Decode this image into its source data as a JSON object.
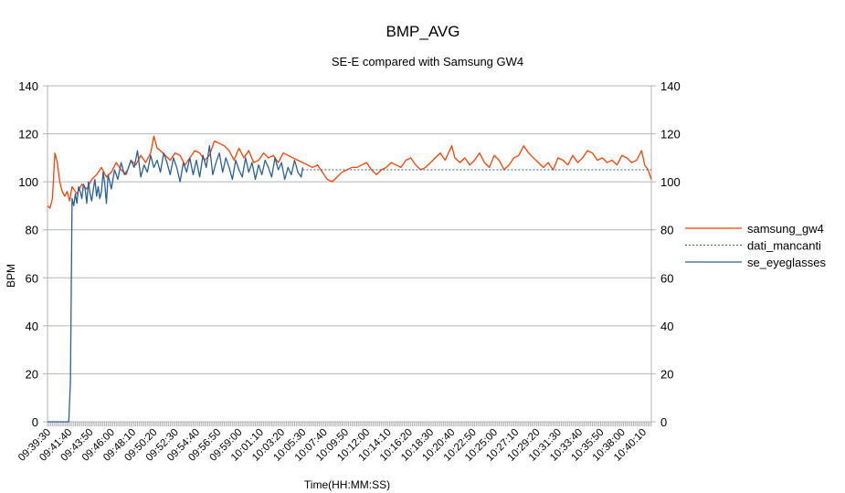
{
  "chart_data": {
    "type": "line",
    "title": "BMP_AVG",
    "subtitle": "SE-E compared with Samsung GW4",
    "xlabel": "Time(HH:MM:SS)",
    "ylabel": "BPM",
    "ylim": [
      0,
      140
    ],
    "y_ticks": [
      0,
      20,
      40,
      60,
      80,
      100,
      120,
      140
    ],
    "secondary_y_ticks": [
      0,
      20,
      40,
      60,
      80,
      100,
      120,
      140
    ],
    "grid": true,
    "legend_position": "right",
    "x_tick_labels": [
      "09:39:30",
      "09:41:40",
      "09:43:50",
      "09:46:00",
      "09:48:10",
      "09:50:20",
      "09:52:30",
      "09:54:40",
      "09:56:50",
      "09:59:00",
      "10:01:10",
      "10:03:20",
      "10:05:30",
      "10:07:40",
      "10:09:50",
      "10:12:00",
      "10:14:10",
      "10:16:20",
      "10:18:30",
      "10:20:40",
      "10:22:50",
      "10:25:00",
      "10:27:10",
      "10:29:20",
      "10:31:30",
      "10:33:40",
      "10:35:50",
      "10:38:00",
      "10:40:10"
    ],
    "x_seconds_start": "09:39:30",
    "x_seconds_end": "10:41:00",
    "series": [
      {
        "name": "samsung_gw4",
        "color": "#ff4000",
        "dash": "solid",
        "x": [
          "09:39:30",
          "09:39:45",
          "09:40:00",
          "09:40:15",
          "09:40:30",
          "09:40:45",
          "09:41:00",
          "09:41:15",
          "09:41:30",
          "09:41:45",
          "09:42:00",
          "09:42:30",
          "09:43:00",
          "09:43:30",
          "09:44:00",
          "09:44:30",
          "09:45:00",
          "09:45:30",
          "09:46:00",
          "09:46:30",
          "09:47:00",
          "09:47:30",
          "09:48:00",
          "09:48:30",
          "09:49:00",
          "09:49:30",
          "09:50:00",
          "09:50:20",
          "09:50:40",
          "09:51:00",
          "09:51:30",
          "09:52:00",
          "09:52:30",
          "09:53:00",
          "09:53:30",
          "09:54:00",
          "09:54:30",
          "09:55:00",
          "09:55:30",
          "09:56:00",
          "09:56:30",
          "09:57:00",
          "09:57:30",
          "09:58:00",
          "09:58:30",
          "09:59:00",
          "09:59:30",
          "10:00:00",
          "10:00:30",
          "10:01:00",
          "10:01:30",
          "10:02:00",
          "10:02:30",
          "10:03:00",
          "10:03:30",
          "10:04:00",
          "10:04:30",
          "10:05:00",
          "10:05:30",
          "10:06:00",
          "10:06:30",
          "10:07:00",
          "10:07:30",
          "10:08:00",
          "10:08:30",
          "10:09:00",
          "10:09:30",
          "10:10:00",
          "10:10:30",
          "10:11:00",
          "10:11:30",
          "10:12:00",
          "10:12:30",
          "10:13:00",
          "10:13:30",
          "10:14:00",
          "10:14:30",
          "10:15:00",
          "10:15:30",
          "10:16:00",
          "10:16:30",
          "10:17:00",
          "10:17:30",
          "10:18:00",
          "10:18:30",
          "10:19:00",
          "10:19:30",
          "10:20:00",
          "10:20:40",
          "10:21:00",
          "10:21:30",
          "10:22:00",
          "10:22:30",
          "10:23:00",
          "10:23:30",
          "10:24:00",
          "10:24:30",
          "10:25:00",
          "10:25:30",
          "10:26:00",
          "10:26:30",
          "10:27:00",
          "10:27:30",
          "10:28:00",
          "10:28:30",
          "10:29:00",
          "10:29:30",
          "10:30:00",
          "10:30:30",
          "10:31:00",
          "10:31:30",
          "10:32:00",
          "10:32:30",
          "10:33:00",
          "10:33:30",
          "10:34:00",
          "10:34:30",
          "10:35:00",
          "10:35:30",
          "10:36:00",
          "10:36:30",
          "10:37:00",
          "10:37:30",
          "10:38:00",
          "10:38:30",
          "10:39:00",
          "10:39:30",
          "10:40:00",
          "10:40:20",
          "10:40:40",
          "10:41:00"
        ],
        "y": [
          90,
          89,
          93,
          112,
          108,
          100,
          96,
          94,
          96,
          92,
          98,
          95,
          99,
          97,
          101,
          103,
          106,
          102,
          104,
          108,
          105,
          103,
          109,
          107,
          111,
          108,
          112,
          119,
          114,
          113,
          111,
          109,
          112,
          111,
          107,
          110,
          113,
          112,
          109,
          111,
          117,
          116,
          115,
          113,
          109,
          114,
          110,
          113,
          108,
          109,
          112,
          110,
          111,
          108,
          112,
          111,
          110,
          109,
          108,
          107,
          106,
          107,
          104,
          101,
          100,
          102,
          104,
          105,
          106,
          106,
          107,
          108,
          105,
          103,
          105,
          106,
          108,
          107,
          106,
          109,
          110,
          107,
          105,
          106,
          108,
          110,
          112,
          109,
          115,
          110,
          108,
          110,
          107,
          109,
          112,
          108,
          106,
          111,
          109,
          105,
          107,
          110,
          111,
          115,
          112,
          110,
          108,
          106,
          108,
          105,
          110,
          109,
          107,
          111,
          108,
          110,
          113,
          112,
          109,
          110,
          108,
          109,
          107,
          111,
          110,
          108,
          109,
          113,
          107,
          105,
          101
        ]
      },
      {
        "name": "dati_mancanti",
        "color": "#2a6099",
        "dash": "dotted",
        "x": [
          "10:05:30",
          "10:41:00"
        ],
        "y": [
          105,
          105
        ]
      },
      {
        "name": "se_eyeglasses",
        "color": "#2a6099",
        "dash": "solid",
        "x": [
          "09:39:30",
          "09:40:00",
          "09:40:30",
          "09:41:00",
          "09:41:30",
          "09:41:40",
          "09:41:50",
          "09:42:00",
          "09:42:10",
          "09:42:20",
          "09:42:30",
          "09:42:40",
          "09:42:50",
          "09:43:00",
          "09:43:10",
          "09:43:20",
          "09:43:30",
          "09:43:40",
          "09:43:50",
          "09:44:00",
          "09:44:10",
          "09:44:20",
          "09:44:30",
          "09:44:40",
          "09:44:50",
          "09:45:00",
          "09:45:10",
          "09:45:20",
          "09:45:30",
          "09:45:40",
          "09:45:50",
          "09:46:00",
          "09:46:20",
          "09:46:40",
          "09:47:00",
          "09:47:20",
          "09:47:40",
          "09:48:00",
          "09:48:20",
          "09:48:40",
          "09:49:00",
          "09:49:20",
          "09:49:40",
          "09:50:00",
          "09:50:20",
          "09:50:40",
          "09:51:00",
          "09:51:20",
          "09:51:40",
          "09:52:00",
          "09:52:20",
          "09:52:40",
          "09:53:00",
          "09:53:20",
          "09:53:40",
          "09:54:00",
          "09:54:20",
          "09:54:40",
          "09:55:00",
          "09:55:20",
          "09:55:40",
          "09:56:00",
          "09:56:20",
          "09:56:40",
          "09:57:00",
          "09:57:20",
          "09:57:40",
          "09:58:00",
          "09:58:20",
          "09:58:40",
          "09:59:00",
          "09:59:20",
          "09:59:40",
          "10:00:00",
          "10:00:20",
          "10:00:40",
          "10:01:00",
          "10:01:20",
          "10:01:40",
          "10:02:00",
          "10:02:20",
          "10:02:40",
          "10:03:00",
          "10:03:20",
          "10:03:40",
          "10:04:00",
          "10:04:20",
          "10:04:40",
          "10:05:00",
          "10:05:20",
          "10:05:30"
        ],
        "y": [
          0,
          0,
          0,
          0,
          0,
          0,
          17,
          93,
          90,
          95,
          91,
          98,
          96,
          93,
          99,
          97,
          91,
          100,
          95,
          92,
          97,
          101,
          94,
          98,
          93,
          96,
          104,
          99,
          91,
          103,
          100,
          97,
          105,
          101,
          108,
          103,
          105,
          109,
          106,
          113,
          102,
          107,
          104,
          111,
          106,
          109,
          104,
          112,
          108,
          103,
          110,
          106,
          100,
          108,
          104,
          110,
          103,
          109,
          102,
          111,
          106,
          115,
          103,
          108,
          112,
          104,
          110,
          106,
          101,
          109,
          105,
          102,
          110,
          104,
          108,
          101,
          107,
          103,
          109,
          106,
          102,
          110,
          105,
          108,
          101,
          106,
          103,
          109,
          104,
          102,
          106
        ]
      }
    ]
  }
}
